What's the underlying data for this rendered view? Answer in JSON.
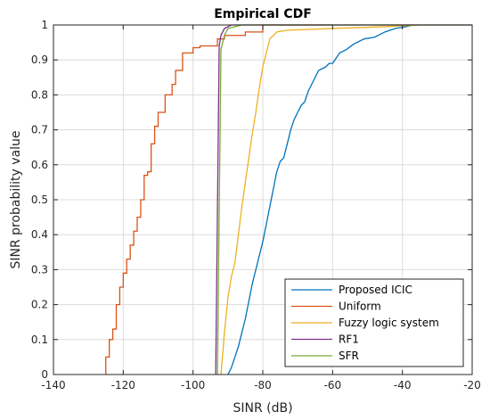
{
  "chart_data": {
    "type": "line",
    "title": "Empirical CDF",
    "xlabel": "SINR (dB)",
    "ylabel": "SINR probability value",
    "xlim": [
      -140,
      -20
    ],
    "ylim": [
      0,
      1
    ],
    "grid": true,
    "legend_position": "bottom-right",
    "x_ticks": [
      "-140",
      "-120",
      "-100",
      "-80",
      "-60",
      "-40",
      "-20"
    ],
    "y_ticks": [
      "0",
      "0.1",
      "0.2",
      "0.3",
      "0.4",
      "0.5",
      "0.6",
      "0.7",
      "0.8",
      "0.9",
      "1"
    ],
    "series": [
      {
        "name": "Proposed ICIC",
        "color": "#0072bd",
        "step": false,
        "points": [
          [
            -90,
            0
          ],
          [
            -89,
            0.02
          ],
          [
            -88,
            0.05
          ],
          [
            -87,
            0.08
          ],
          [
            -86,
            0.12
          ],
          [
            -85,
            0.16
          ],
          [
            -84,
            0.21
          ],
          [
            -83,
            0.26
          ],
          [
            -82,
            0.3
          ],
          [
            -81,
            0.34
          ],
          [
            -80,
            0.38
          ],
          [
            -79,
            0.43
          ],
          [
            -78,
            0.48
          ],
          [
            -77,
            0.53
          ],
          [
            -76,
            0.58
          ],
          [
            -75,
            0.61
          ],
          [
            -74,
            0.62
          ],
          [
            -73,
            0.66
          ],
          [
            -72,
            0.7
          ],
          [
            -71,
            0.73
          ],
          [
            -70,
            0.75
          ],
          [
            -69,
            0.77
          ],
          [
            -68,
            0.78
          ],
          [
            -67,
            0.81
          ],
          [
            -66,
            0.83
          ],
          [
            -65,
            0.85
          ],
          [
            -64,
            0.87
          ],
          [
            -63,
            0.875
          ],
          [
            -62,
            0.88
          ],
          [
            -61,
            0.89
          ],
          [
            -60,
            0.89
          ],
          [
            -58,
            0.92
          ],
          [
            -56,
            0.93
          ],
          [
            -54,
            0.945
          ],
          [
            -51,
            0.96
          ],
          [
            -48,
            0.965
          ],
          [
            -45,
            0.98
          ],
          [
            -42,
            0.99
          ],
          [
            -39,
            0.995
          ],
          [
            -37,
            1
          ]
        ]
      },
      {
        "name": "Uniform",
        "color": "#d95319",
        "step": true,
        "points": [
          [
            -125,
            0
          ],
          [
            -125,
            0.03
          ],
          [
            -124,
            0.05
          ],
          [
            -123,
            0.1
          ],
          [
            -122,
            0.13
          ],
          [
            -122,
            0.15
          ],
          [
            -121,
            0.2
          ],
          [
            -120,
            0.25
          ],
          [
            -119,
            0.29
          ],
          [
            -118,
            0.33
          ],
          [
            -117,
            0.37
          ],
          [
            -116,
            0.41
          ],
          [
            -115,
            0.45
          ],
          [
            -114,
            0.5
          ],
          [
            -113,
            0.57
          ],
          [
            -112,
            0.58
          ],
          [
            -111,
            0.66
          ],
          [
            -110,
            0.71
          ],
          [
            -108,
            0.75
          ],
          [
            -106,
            0.8
          ],
          [
            -105,
            0.83
          ],
          [
            -103,
            0.87
          ],
          [
            -100,
            0.92
          ],
          [
            -98,
            0.935
          ],
          [
            -93,
            0.94
          ],
          [
            -91,
            0.96
          ],
          [
            -85,
            0.97
          ],
          [
            -80,
            0.98
          ],
          [
            -60,
            1
          ]
        ]
      },
      {
        "name": "Fuzzy logic system",
        "color": "#edb120",
        "step": false,
        "points": [
          [
            -92,
            0
          ],
          [
            -91,
            0.12
          ],
          [
            -90,
            0.22
          ],
          [
            -89,
            0.28
          ],
          [
            -88,
            0.32
          ],
          [
            -87,
            0.4
          ],
          [
            -86,
            0.48
          ],
          [
            -85,
            0.55
          ],
          [
            -84,
            0.62
          ],
          [
            -83,
            0.69
          ],
          [
            -82,
            0.75
          ],
          [
            -81,
            0.82
          ],
          [
            -80,
            0.88
          ],
          [
            -79,
            0.92
          ],
          [
            -78,
            0.96
          ],
          [
            -76,
            0.98
          ],
          [
            -73,
            0.985
          ],
          [
            -60,
            0.99
          ],
          [
            -45,
            0.995
          ],
          [
            -35,
            1
          ]
        ]
      },
      {
        "name": "RF1",
        "color": "#7e2f8e",
        "step": false,
        "points": [
          [
            -93.5,
            0
          ],
          [
            -92.5,
            0.94
          ],
          [
            -92,
            0.97
          ],
          [
            -91,
            0.99
          ],
          [
            -89,
            1
          ],
          [
            -20,
            1
          ]
        ]
      },
      {
        "name": "SFR",
        "color": "#77ac30",
        "step": false,
        "points": [
          [
            -93,
            0
          ],
          [
            -92,
            0.93
          ],
          [
            -91,
            0.97
          ],
          [
            -90,
            0.99
          ],
          [
            -88,
            0.995
          ],
          [
            -86,
            1
          ],
          [
            -20,
            1
          ]
        ]
      }
    ]
  }
}
